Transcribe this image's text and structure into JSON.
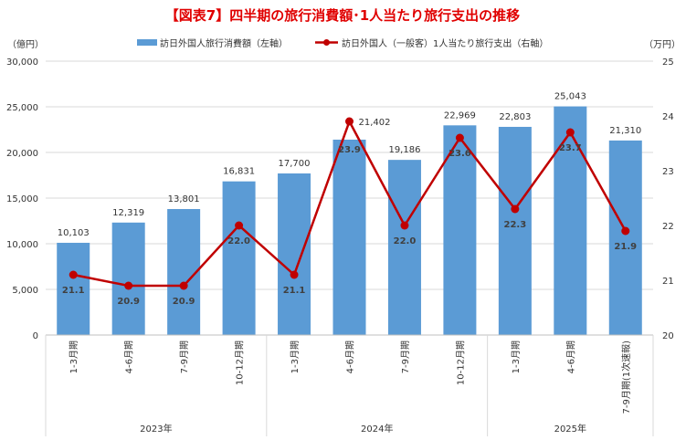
{
  "chart_data": {
    "type": "bar+line",
    "title": "【図表7】四半期の旅行消費額･1人当たり旅行支出の推移",
    "left_unit": "（億円）",
    "right_unit": "（万円）",
    "categories": [
      "1-3月期",
      "4-6月期",
      "7-9月期",
      "10-12月期",
      "1-3月期",
      "4-6月期",
      "7-9月期",
      "10-12月期",
      "1-3月期",
      "4-6月期",
      "7-9月期(1次速報)"
    ],
    "groups": [
      {
        "label": "2023年",
        "count": 4
      },
      {
        "label": "2024年",
        "count": 4
      },
      {
        "label": "2025年",
        "count": 3
      }
    ],
    "series": [
      {
        "name": "訪日外国人旅行消費額（左軸）",
        "type": "bar",
        "axis": "left",
        "color": "#5B9BD5",
        "values": [
          10103,
          12319,
          13801,
          16831,
          17700,
          21402,
          19186,
          22969,
          22803,
          25043,
          21310
        ],
        "labels": [
          "10,103",
          "12,319",
          "13,801",
          "16,831",
          "17,700",
          "21,402",
          "19,186",
          "22,969",
          "22,803",
          "25,043",
          "21,310"
        ]
      },
      {
        "name": "訪日外国人（一般客）1人当たり旅行支出（右軸）",
        "type": "line",
        "axis": "right",
        "color": "#C00000",
        "values": [
          21.1,
          20.9,
          20.9,
          22.0,
          21.1,
          23.9,
          22.0,
          23.6,
          22.3,
          23.7,
          21.9
        ],
        "labels": [
          "21.1",
          "20.9",
          "20.9",
          "22.0",
          "21.1",
          "23.9",
          "22.0",
          "23.6",
          "22.3",
          "23.7",
          "21.9"
        ]
      }
    ],
    "left_axis": {
      "ylim": [
        0,
        30000
      ],
      "ticks": [
        "0",
        "5,000",
        "10,000",
        "15,000",
        "20,000",
        "25,000",
        "30,000"
      ]
    },
    "right_axis": {
      "ylim": [
        20,
        25
      ],
      "ticks": [
        "20",
        "21",
        "22",
        "23",
        "24",
        "25"
      ]
    },
    "grid": true,
    "legend": "top-center"
  }
}
